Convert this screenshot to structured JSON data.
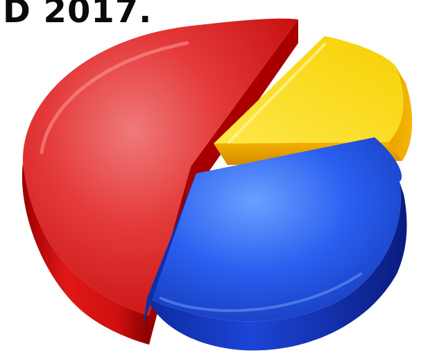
{
  "heading": {
    "text": "D 2017."
  },
  "graphic": {
    "name": "3d-pie-chart-icon",
    "colors": {
      "red": "#e41a1a",
      "blue": "#1f48d8",
      "yellow": "#f7e22a",
      "white_background": "#ffffff"
    }
  }
}
